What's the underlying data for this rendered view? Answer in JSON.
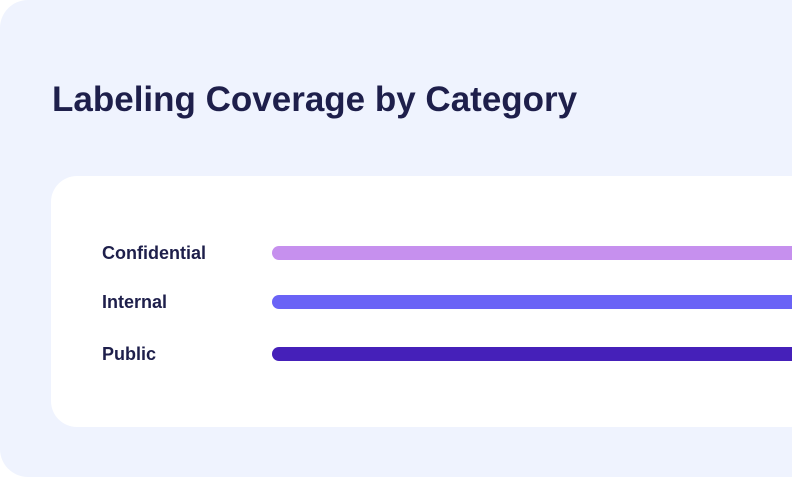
{
  "title": "Labeling Coverage by Category",
  "chart_data": {
    "type": "bar",
    "orientation": "horizontal",
    "title": "Labeling Coverage by Category",
    "categories": [
      "Confidential",
      "Internal",
      "Public"
    ],
    "series": [
      {
        "values": [
          1,
          1,
          1
        ],
        "colors": [
          "#c690ee",
          "#6a63f6",
          "#4520b9"
        ]
      }
    ],
    "xlabel": "",
    "ylabel": "",
    "grid": false,
    "legend": "none"
  }
}
